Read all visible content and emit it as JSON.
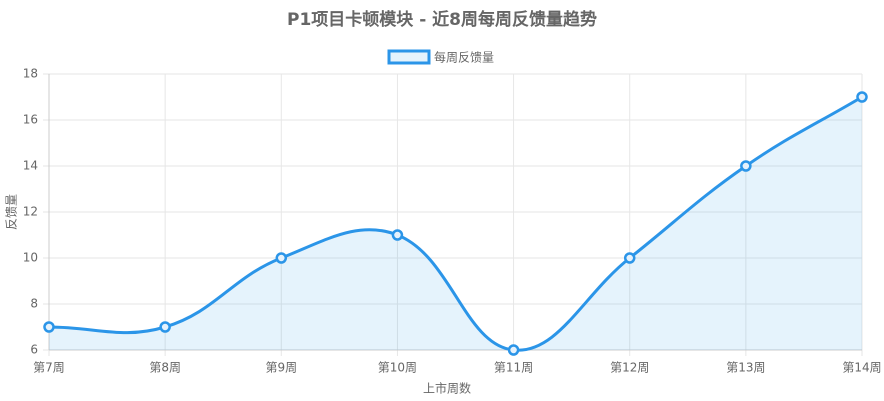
{
  "chart_data": {
    "type": "line",
    "title": "P1项目卡顿模块 - 近8周每周反馈量趋势",
    "categories": [
      "第7周",
      "第8周",
      "第9周",
      "第10周",
      "第11周",
      "第12周",
      "第13周",
      "第14周"
    ],
    "series": [
      {
        "name": "每周反馈量",
        "color": "#2b95e8",
        "fill": "rgba(54,162,235,0.13)",
        "values": [
          7,
          7,
          10,
          11,
          6,
          10,
          14,
          17
        ]
      }
    ],
    "x_label": "上市周数",
    "y_label": "反馈量",
    "ylim": [
      6,
      18
    ],
    "yticks": [
      6,
      8,
      10,
      12,
      14,
      16,
      18
    ],
    "grid": true,
    "legend": "top",
    "smooth": true
  }
}
